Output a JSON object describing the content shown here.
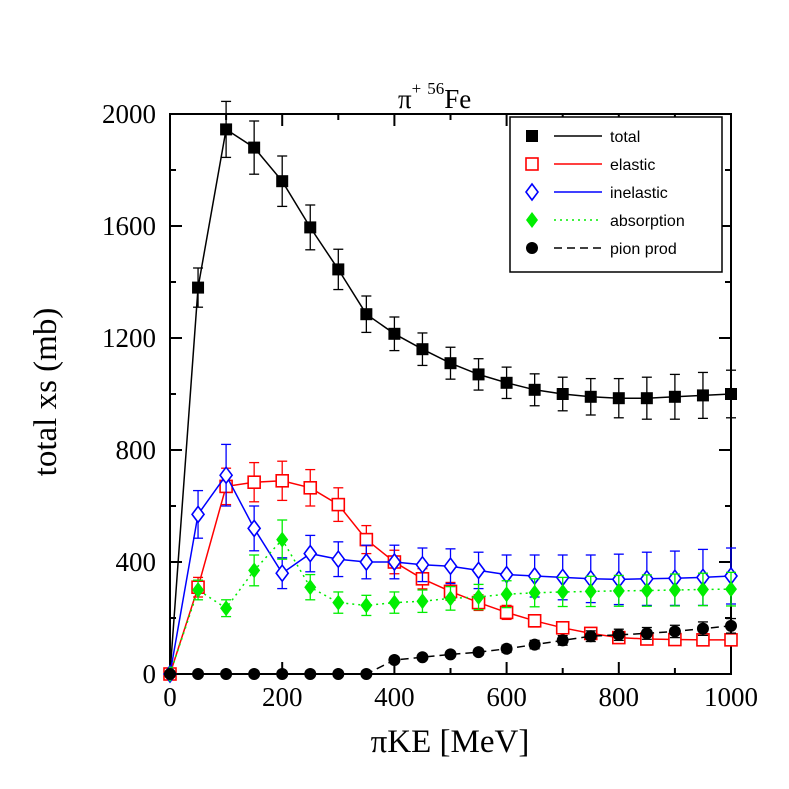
{
  "chart_data": {
    "type": "line",
    "title": {
      "base": "π",
      "superscript_charge": "+",
      "superscript_mass": "56",
      "element": "Fe"
    },
    "xlabel": "πKE [MeV]",
    "ylabel": "total xs (mb)",
    "xlim": [
      0,
      1000
    ],
    "ylim": [
      0,
      2000
    ],
    "xticks": [
      0,
      200,
      400,
      600,
      800,
      1000
    ],
    "yticks": [
      0,
      400,
      800,
      1200,
      1600,
      2000
    ],
    "grid": false,
    "legend_position": "top-right",
    "series": [
      {
        "name": "total",
        "color": "#000000",
        "marker": "filled-square",
        "line": "solid",
        "x": [
          0,
          50,
          100,
          150,
          200,
          250,
          300,
          350,
          400,
          450,
          500,
          550,
          600,
          650,
          700,
          750,
          800,
          850,
          900,
          950,
          1000
        ],
        "y": [
          0,
          1380,
          1945,
          1880,
          1760,
          1595,
          1445,
          1285,
          1215,
          1160,
          1110,
          1070,
          1040,
          1015,
          1000,
          990,
          985,
          985,
          990,
          995,
          1000
        ],
        "err": [
          0,
          70,
          100,
          95,
          90,
          80,
          72,
          65,
          60,
          58,
          57,
          56,
          56,
          57,
          60,
          65,
          70,
          75,
          80,
          82,
          85
        ]
      },
      {
        "name": "elastic",
        "color": "#ff0000",
        "marker": "open-square",
        "line": "solid",
        "x": [
          0,
          50,
          100,
          150,
          200,
          250,
          300,
          350,
          400,
          450,
          500,
          550,
          600,
          650,
          700,
          750,
          800,
          850,
          900,
          950,
          1000
        ],
        "y": [
          0,
          310,
          670,
          685,
          690,
          665,
          605,
          480,
          400,
          340,
          295,
          255,
          220,
          190,
          165,
          145,
          130,
          125,
          123,
          122,
          122
        ],
        "err": [
          0,
          35,
          65,
          70,
          70,
          65,
          60,
          50,
          42,
          36,
          32,
          28,
          25,
          22,
          20,
          18,
          16,
          16,
          15,
          15,
          15
        ]
      },
      {
        "name": "inelastic",
        "color": "#0000ff",
        "marker": "open-diamond",
        "line": "solid",
        "x": [
          0,
          50,
          100,
          150,
          200,
          250,
          300,
          350,
          400,
          450,
          500,
          550,
          600,
          650,
          700,
          750,
          800,
          850,
          900,
          950,
          1000
        ],
        "y": [
          0,
          570,
          710,
          520,
          360,
          430,
          410,
          400,
          400,
          390,
          385,
          370,
          355,
          350,
          345,
          340,
          338,
          340,
          342,
          345,
          350
        ],
        "err": [
          0,
          85,
          110,
          80,
          55,
          65,
          62,
          60,
          60,
          60,
          62,
          65,
          70,
          75,
          80,
          85,
          90,
          95,
          97,
          100,
          100
        ]
      },
      {
        "name": "absorption",
        "color": "#00ee00",
        "marker": "filled-diamond",
        "line": "dotted",
        "x": [
          0,
          50,
          100,
          150,
          200,
          250,
          300,
          350,
          400,
          450,
          500,
          550,
          600,
          650,
          700,
          750,
          800,
          850,
          900,
          950,
          1000
        ],
        "y": [
          0,
          300,
          235,
          370,
          480,
          310,
          255,
          245,
          255,
          260,
          270,
          275,
          285,
          290,
          293,
          295,
          297,
          298,
          300,
          302,
          303
        ],
        "err": [
          0,
          35,
          30,
          55,
          70,
          45,
          38,
          36,
          38,
          40,
          42,
          45,
          48,
          50,
          52,
          54,
          55,
          56,
          57,
          58,
          60
        ]
      },
      {
        "name": "pion prod",
        "color": "#000000",
        "marker": "filled-circle",
        "line": "dashed",
        "x": [
          0,
          50,
          100,
          150,
          200,
          250,
          300,
          350,
          400,
          450,
          500,
          550,
          600,
          650,
          700,
          750,
          800,
          850,
          900,
          950,
          1000
        ],
        "y": [
          0,
          0,
          0,
          0,
          0,
          0,
          0,
          0,
          50,
          60,
          70,
          78,
          90,
          105,
          120,
          135,
          140,
          145,
          152,
          162,
          172
        ],
        "err": [
          0,
          0,
          0,
          0,
          0,
          0,
          0,
          0,
          8,
          9,
          10,
          11,
          13,
          15,
          17,
          19,
          20,
          21,
          22,
          24,
          26
        ]
      }
    ]
  }
}
